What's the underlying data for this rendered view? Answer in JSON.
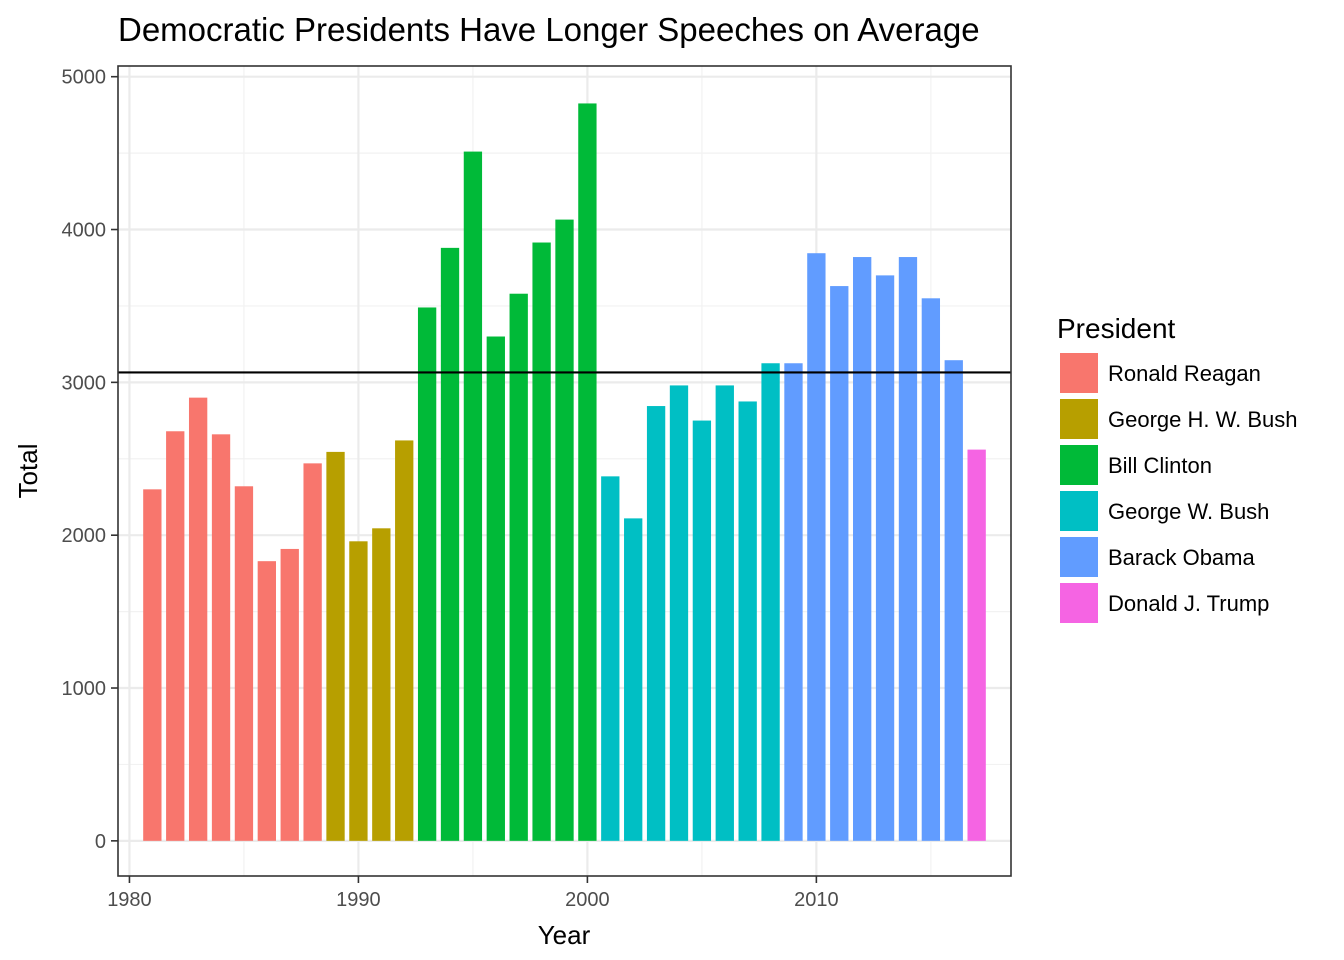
{
  "chart_data": {
    "type": "bar",
    "title": "Democratic Presidents Have Longer Speeches on Average",
    "xlabel": "Year",
    "ylabel": "Total",
    "xlim": [
      1979.5,
      2018.5
    ],
    "ylim": [
      -230,
      5070
    ],
    "x_ticks": [
      1980,
      1990,
      2000,
      2010
    ],
    "y_ticks": [
      0,
      1000,
      2000,
      3000,
      4000,
      5000
    ],
    "grid": true,
    "hline": 3065,
    "legend": {
      "title": "President",
      "position": "right"
    },
    "series": [
      {
        "name": "Ronald Reagan",
        "color": "#F8766D",
        "x": [
          1981,
          1982,
          1983,
          1984,
          1985,
          1986,
          1987,
          1988
        ],
        "values": [
          2300,
          2680,
          2900,
          2660,
          2320,
          1830,
          1910,
          2470
        ]
      },
      {
        "name": "George H. W. Bush",
        "color": "#B79F00",
        "x": [
          1989,
          1990,
          1991,
          1992
        ],
        "values": [
          2545,
          1960,
          2045,
          2620
        ]
      },
      {
        "name": "Bill Clinton",
        "color": "#00BA38",
        "x": [
          1993,
          1994,
          1995,
          1996,
          1997,
          1998,
          1999,
          2000
        ],
        "values": [
          3490,
          3880,
          4510,
          3300,
          3580,
          3915,
          4065,
          4825
        ]
      },
      {
        "name": "George W. Bush",
        "color": "#00BFC4",
        "x": [
          2001,
          2002,
          2003,
          2004,
          2005,
          2006,
          2007,
          2008
        ],
        "values": [
          2385,
          2110,
          2845,
          2980,
          2750,
          2980,
          2875,
          3125
        ]
      },
      {
        "name": "Barack Obama",
        "color": "#619CFF",
        "x": [
          2009,
          2010,
          2011,
          2012,
          2013,
          2014,
          2015,
          2016
        ],
        "values": [
          3125,
          3845,
          3630,
          3820,
          3700,
          3820,
          3550,
          3145
        ]
      },
      {
        "name": "Donald J. Trump",
        "color": "#F564E3",
        "x": [
          2017
        ],
        "values": [
          2560
        ]
      }
    ]
  }
}
